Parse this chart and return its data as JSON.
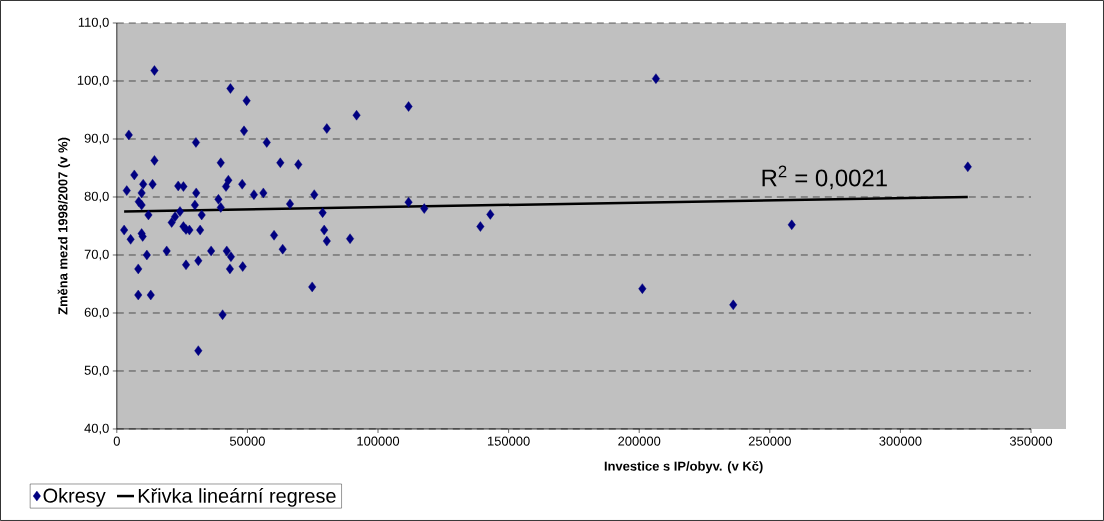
{
  "chart_data": {
    "type": "scatter",
    "xlabel": "Investice s IP/obyv. (v Kč)",
    "ylabel": "Změna mezd 1998/2007 (v %)",
    "xlim": [
      0,
      350000
    ],
    "xticks": [
      0,
      50000,
      100000,
      150000,
      200000,
      250000,
      300000,
      350000
    ],
    "ylim": [
      40,
      110
    ],
    "yticks": [
      {
        "value": 40,
        "label": "40,0"
      },
      {
        "value": 50,
        "label": "50,0"
      },
      {
        "value": 60,
        "label": "60,0"
      },
      {
        "value": 70,
        "label": "70,0"
      },
      {
        "value": 80,
        "label": "80,0"
      },
      {
        "value": 90,
        "label": "90,0"
      },
      {
        "value": 100,
        "label": "100,0"
      },
      {
        "value": 110,
        "label": "110,0"
      }
    ],
    "grid": "y",
    "legend": "bottom left",
    "annotations": [
      "R$^{2}$ = 0,0021"
    ],
    "series": [
      {
        "name": "Okresy",
        "marker": "diamond",
        "color": "#000080",
        "x": [
          14400,
          43500,
          49700,
          4600,
          48700,
          30300,
          57400,
          6700,
          14400,
          39800,
          62600,
          69500,
          3800,
          10100,
          13700,
          9500,
          23500,
          25500,
          30400,
          42700,
          41800,
          48000,
          52500,
          56100,
          75600,
          8400,
          9500,
          12100,
          29900,
          32500,
          38900,
          39800,
          66300,
          24200,
          22300,
          21000,
          25500,
          27800,
          31900,
          2800,
          9500,
          60200,
          5300,
          9900,
          26500,
          11500,
          19100,
          8200,
          26500,
          31200,
          36100,
          42100,
          43700,
          43300,
          48200,
          63500,
          74800,
          8200,
          13000,
          40500,
          31200,
          80400,
          91800,
          111700,
          78800,
          79400,
          80400,
          89300,
          111700,
          117700,
          139200,
          143000,
          206400,
          201200,
          236000,
          258400,
          325800
        ],
        "values": [
          101.8,
          98.7,
          96.6,
          90.7,
          91.4,
          89.4,
          89.4,
          83.8,
          86.3,
          85.9,
          85.9,
          85.6,
          81.1,
          82.2,
          82.2,
          80.7,
          81.9,
          81.8,
          80.7,
          82.9,
          81.8,
          82.2,
          80.4,
          80.7,
          80.4,
          79.2,
          78.6,
          76.9,
          78.6,
          76.9,
          79.6,
          78.2,
          78.8,
          77.5,
          76.6,
          75.6,
          74.9,
          74.3,
          74.3,
          74.3,
          73.7,
          73.4,
          72.7,
          73.2,
          74.4,
          70.0,
          70.7,
          67.6,
          68.3,
          69.0,
          70.7,
          70.7,
          69.7,
          67.6,
          68.0,
          71.0,
          64.5,
          63.1,
          63.1,
          59.7,
          53.5,
          91.8,
          94.1,
          95.6,
          77.3,
          74.3,
          72.4,
          72.8,
          79.1,
          78.0,
          74.9,
          77.0,
          100.4,
          64.2,
          61.4,
          75.2,
          85.2
        ]
      },
      {
        "name": "Křivka lineární regrese",
        "type": "line",
        "marker": "none",
        "color": "#000000",
        "x": [
          2800,
          325800
        ],
        "values": [
          77.5,
          80.0
        ]
      }
    ]
  }
}
